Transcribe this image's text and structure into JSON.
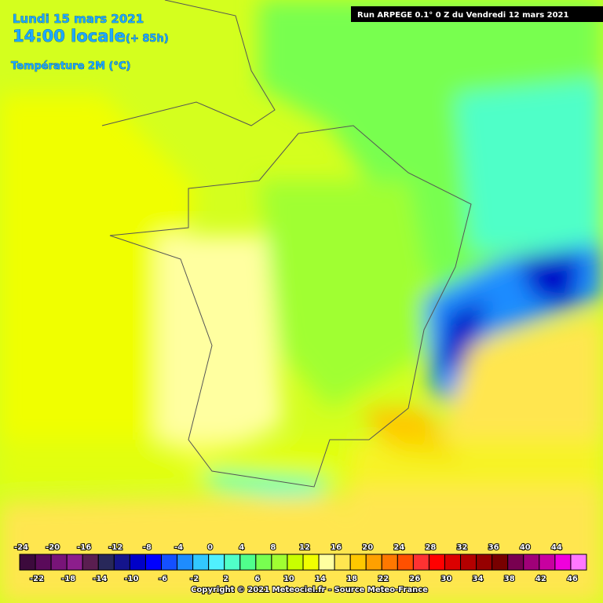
{
  "header": {
    "date": "Lundi 15 mars 2021",
    "time": "14:00 locale",
    "lead": "(+ 85h)",
    "variable": "Température 2M (°C)"
  },
  "run": "Run ARPEGE 0.1° 0 Z du Vendredi 12 mars 2021",
  "legend": {
    "ticks": [
      -24,
      -22,
      -20,
      -18,
      -16,
      -14,
      -12,
      -10,
      -8,
      -6,
      -4,
      -2,
      0,
      2,
      4,
      6,
      8,
      10,
      12,
      14,
      16,
      18,
      20,
      22,
      24,
      26,
      28,
      30,
      32,
      34,
      36,
      38,
      40,
      42,
      44,
      46
    ],
    "colors": [
      "#3c0a3c",
      "#5a0a5a",
      "#781478",
      "#8c1e8c",
      "#5a1e50",
      "#28285a",
      "#14148c",
      "#0000c8",
      "#0000ff",
      "#1450ff",
      "#1e8cff",
      "#32c8ff",
      "#50f0ff",
      "#50ffc8",
      "#50ff8c",
      "#78ff50",
      "#a0ff32",
      "#c8ff00",
      "#f0ff00",
      "#ffffa0",
      "#ffe650",
      "#ffc800",
      "#ffa000",
      "#ff7800",
      "#ff5000",
      "#ff3232",
      "#ff0000",
      "#dc0000",
      "#b40000",
      "#960000",
      "#780000",
      "#780050",
      "#a00078",
      "#c800a0",
      "#f000dc",
      "#ff78ff"
    ]
  },
  "copyright": "Copyright © 2021 Meteociel.fr - Source Meteo-France"
}
